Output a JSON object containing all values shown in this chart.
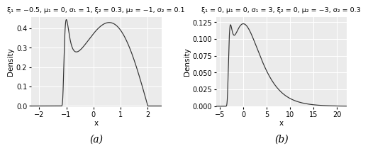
{
  "panel_a": {
    "title": "ξ₁ = −0.5, μ₁ = 0, σ₁ = 1, ξ₂ = 0.3, μ₂ = −1, σ₂ = 0.1",
    "xi1": -0.5,
    "mu1": 0,
    "sigma1": 1,
    "xi2": 0.3,
    "mu2": -1,
    "sigma2": 0.1,
    "xlim": [
      -2.3,
      2.5
    ],
    "ylim": [
      -0.005,
      0.46
    ],
    "xticks": [
      -2,
      -1,
      0,
      1,
      2
    ],
    "yticks": [
      0.0,
      0.1,
      0.2,
      0.3,
      0.4
    ],
    "xlabel": "x",
    "ylabel": "Density",
    "label": "(a)"
  },
  "panel_b": {
    "title": "ξ₁ = 0, μ₁ = 0, σ₁ = 3, ξ₂ = 0, μ₂ = −3, σ₂ = 0.3",
    "xi1": 0.0,
    "mu1": 0,
    "sigma1": 3,
    "xi2": 0.0,
    "mu2": -3,
    "sigma2": 0.3,
    "xlim": [
      -5.8,
      22
    ],
    "ylim": [
      -0.001,
      0.133
    ],
    "xticks": [
      -5,
      0,
      5,
      10,
      15,
      20
    ],
    "yticks": [
      0.0,
      0.025,
      0.05,
      0.075,
      0.1,
      0.125
    ],
    "xlabel": "x",
    "ylabel": "Density",
    "label": "(b)"
  },
  "bg_color": "#EBEBEB",
  "line_color": "#333333",
  "grid_color": "#FFFFFF",
  "title_fontsize": 6.8,
  "axis_fontsize": 7.5,
  "tick_fontsize": 7,
  "label_fontsize": 10
}
